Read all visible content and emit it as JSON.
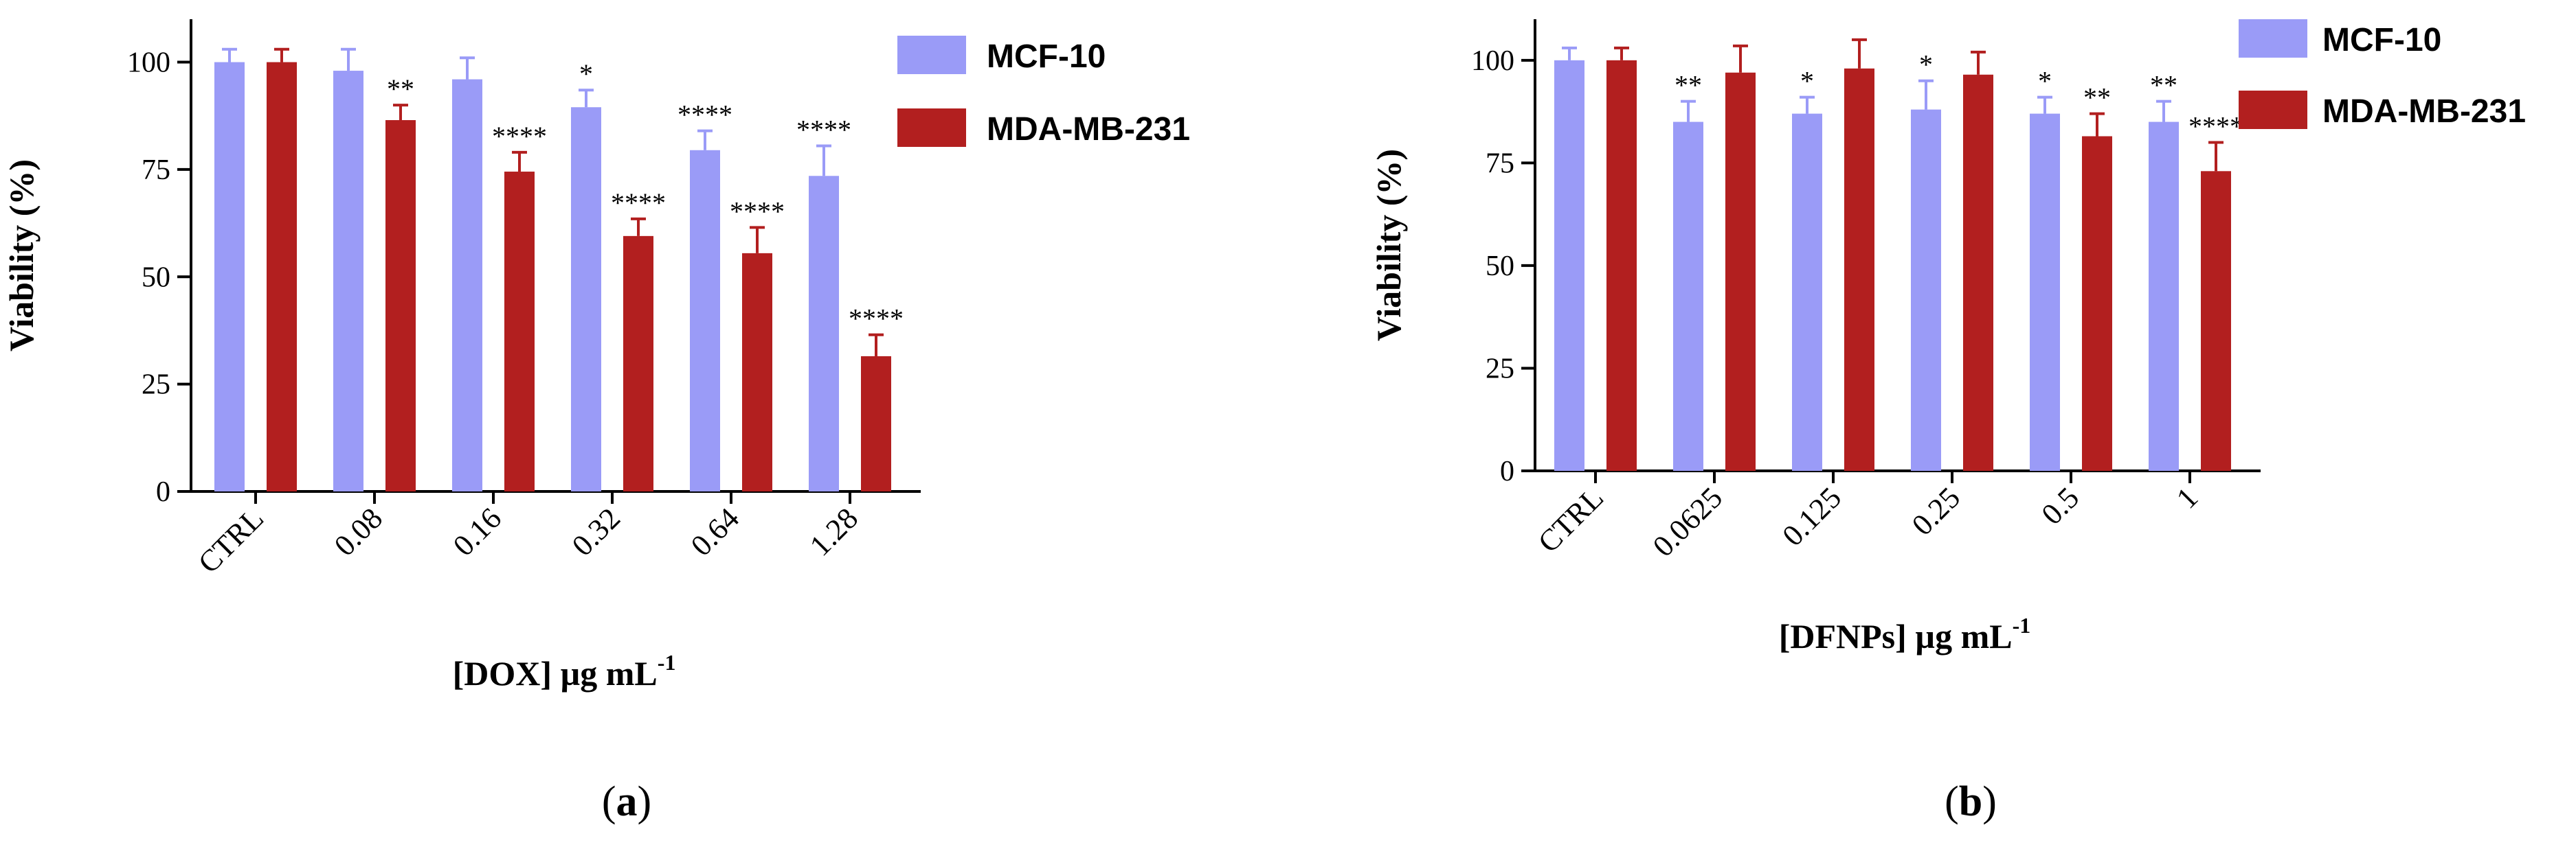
{
  "colors": {
    "mcf10": "#9a9bf7",
    "mda": "#b21f1f",
    "axis": "#000000"
  },
  "chart_data": [
    {
      "type": "bar",
      "panel_label": "a",
      "xlabel": "[DOX] µg mL",
      "xlabel_sup": "-1",
      "ylabel": "Viability (%)",
      "ylim": [
        0,
        110
      ],
      "yticks": [
        0,
        25,
        50,
        75,
        100
      ],
      "categories": [
        "CTRL",
        "0.08",
        "0.16",
        "0.32",
        "0.64",
        "1.28"
      ],
      "series": [
        {
          "name": "MCF-10",
          "values": [
            100,
            98,
            96,
            89.5,
            79.5,
            73.5
          ],
          "errors": [
            3,
            5,
            5,
            4,
            4.5,
            7
          ],
          "significance": [
            "",
            "",
            "",
            "*",
            "****",
            "****"
          ]
        },
        {
          "name": "MDA-MB-231",
          "values": [
            100,
            86.5,
            74.5,
            59.5,
            55.5,
            31.5
          ],
          "errors": [
            3,
            3.5,
            4.5,
            4,
            6,
            5
          ],
          "significance": [
            "",
            "**",
            "****",
            "****",
            "****",
            "****"
          ]
        }
      ]
    },
    {
      "type": "bar",
      "panel_label": "b",
      "xlabel": "[DFNPs] µg mL",
      "xlabel_sup": "-1",
      "ylabel": "Viability (%)",
      "ylim": [
        0,
        110
      ],
      "yticks": [
        0,
        25,
        50,
        75,
        100
      ],
      "categories": [
        "CTRL",
        "0.0625",
        "0.125",
        "0.25",
        "0.5",
        "1"
      ],
      "series": [
        {
          "name": "MCF-10",
          "values": [
            100,
            85,
            87,
            88,
            87,
            85
          ],
          "errors": [
            3,
            5,
            4,
            7,
            4,
            5
          ],
          "significance": [
            "",
            "**",
            "*",
            "*",
            "*",
            "**"
          ]
        },
        {
          "name": "MDA-MB-231",
          "values": [
            100,
            97,
            98,
            96.5,
            81.5,
            73
          ],
          "errors": [
            3,
            6.5,
            7,
            5.5,
            5.5,
            7
          ],
          "significance": [
            "",
            "",
            "",
            "",
            "**",
            "****"
          ]
        }
      ]
    }
  ]
}
